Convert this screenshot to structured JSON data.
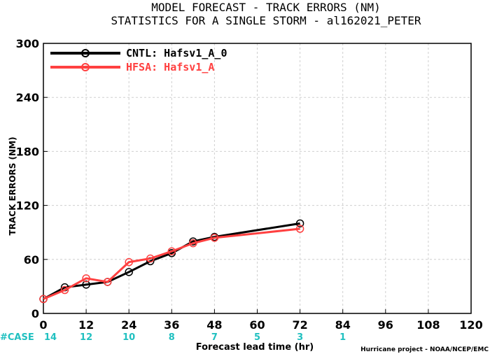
{
  "chart_data": {
    "type": "line",
    "title": "MODEL FORECAST - TRACK ERRORS (NM)",
    "subtitle": "STATISTICS FOR A SINGLE STORM - al162021_PETER",
    "xlabel": "Forecast lead time (hr)",
    "ylabel": "TRACK ERRORS (NM)",
    "xlim": [
      0,
      120
    ],
    "ylim": [
      0,
      300
    ],
    "xticks": [
      0,
      12,
      24,
      36,
      48,
      60,
      72,
      84,
      96,
      108,
      120
    ],
    "yticks": [
      0,
      60,
      120,
      180,
      240,
      300
    ],
    "ytick_labels": [
      "0",
      "60",
      "120",
      "180",
      "240",
      "300"
    ],
    "grid": true,
    "legend_position": "top-left",
    "series": [
      {
        "name": "CNTL: Hafsv1_A_0",
        "color": "#000000",
        "x": [
          0,
          6,
          12,
          18,
          24,
          30,
          36,
          42,
          48,
          72
        ],
        "y": [
          16,
          29,
          32,
          35,
          46,
          58,
          67,
          80,
          85,
          100
        ]
      },
      {
        "name": "HFSA: Hafsv1_A",
        "color": "#ff4040",
        "x": [
          0,
          6,
          12,
          18,
          24,
          30,
          36,
          42,
          48,
          72
        ],
        "y": [
          16,
          26,
          39,
          35,
          57,
          61,
          69,
          78,
          84,
          94
        ]
      }
    ],
    "cases": {
      "label": "#CASE",
      "x": [
        0,
        12,
        24,
        36,
        48,
        60,
        72,
        84
      ],
      "values": [
        "14",
        "12",
        "10",
        "8",
        "7",
        "5",
        "3",
        "1"
      ],
      "color": "#20c0c0"
    },
    "footer": "Hurricane project - NOAA/NCEP/EMC"
  }
}
